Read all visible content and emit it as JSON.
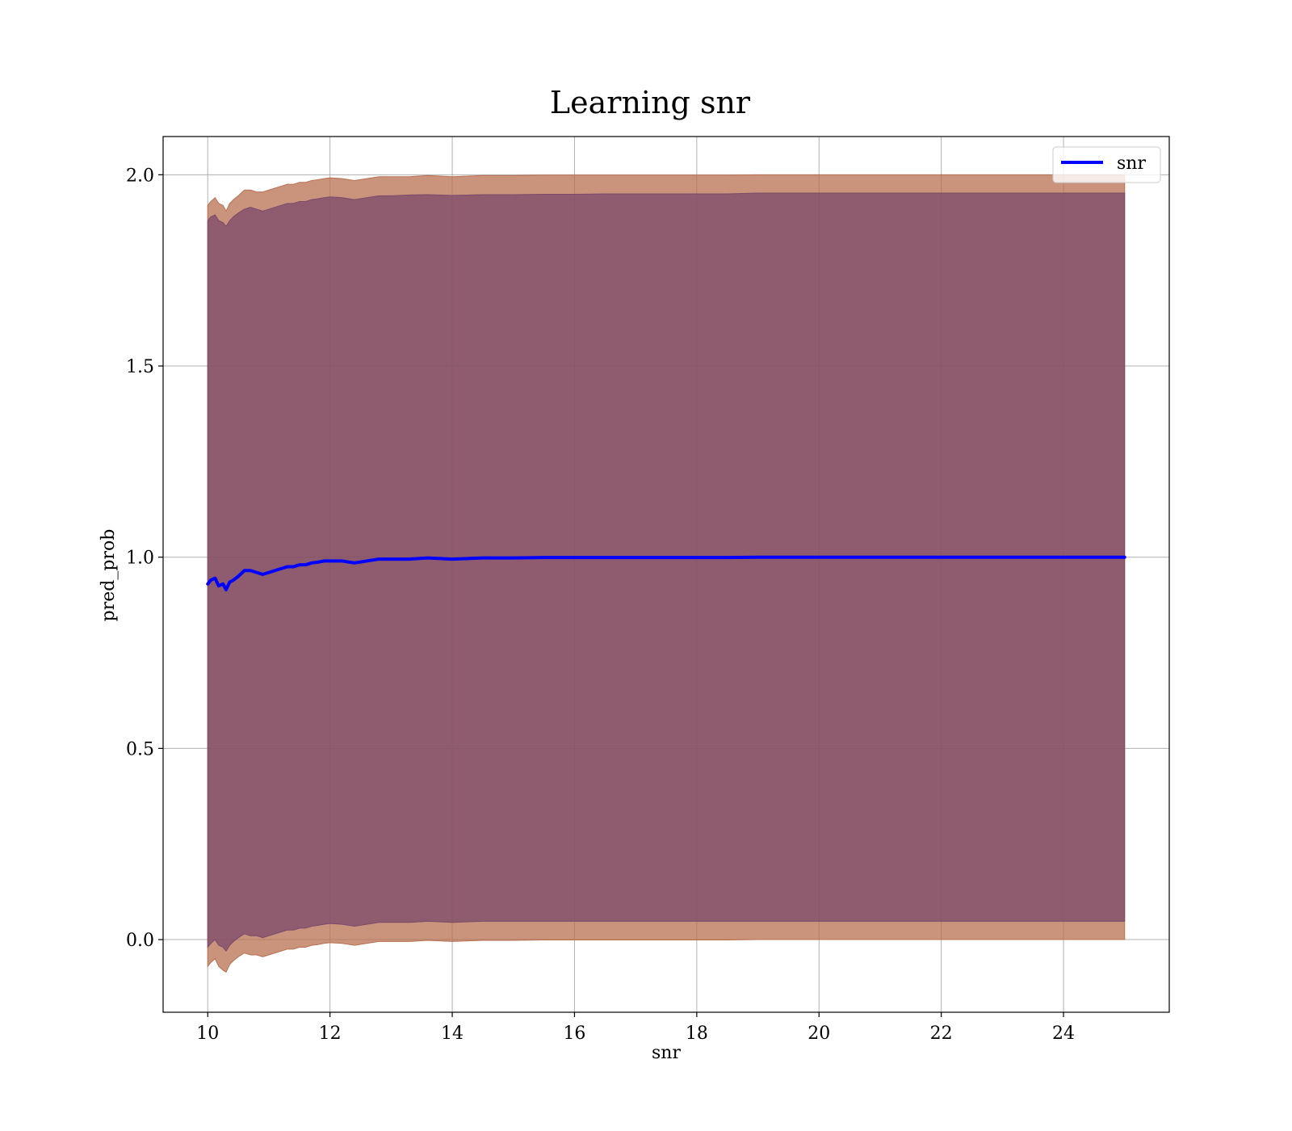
{
  "chart_data": {
    "type": "line",
    "title": "Learning snr",
    "xlabel": "snr",
    "ylabel": "pred_prob",
    "xlim": [
      9.27,
      25.73
    ],
    "ylim": [
      -0.19,
      2.1
    ],
    "xticks": [
      10,
      12,
      14,
      16,
      18,
      20,
      22,
      24
    ],
    "yticks": [
      0.0,
      0.5,
      1.0,
      1.5,
      2.0
    ],
    "xtick_labels": [
      "10",
      "12",
      "14",
      "16",
      "18",
      "20",
      "22",
      "24"
    ],
    "ytick_labels": [
      "0.0",
      "0.5",
      "1.0",
      "1.5",
      "2.0"
    ],
    "grid": true,
    "legend": {
      "placement": "top-right",
      "entries": [
        "snr"
      ]
    },
    "series": [
      {
        "name": "snr",
        "color": "#0000ff",
        "x": [
          10.0,
          10.05,
          10.12,
          10.18,
          10.25,
          10.3,
          10.36,
          10.42,
          10.5,
          10.6,
          10.7,
          10.8,
          10.9,
          11.0,
          11.1,
          11.2,
          11.3,
          11.4,
          11.5,
          11.6,
          11.7,
          11.8,
          11.9,
          12.0,
          12.2,
          12.4,
          12.6,
          12.8,
          13.0,
          13.3,
          13.6,
          14.0,
          14.5,
          15.0,
          15.5,
          16.0,
          16.5,
          17.0,
          17.5,
          18.0,
          18.5,
          19.0,
          20.0,
          21.0,
          22.0,
          23.0,
          24.0,
          25.0
        ],
        "y": [
          0.93,
          0.94,
          0.945,
          0.925,
          0.93,
          0.915,
          0.935,
          0.94,
          0.95,
          0.965,
          0.965,
          0.96,
          0.955,
          0.96,
          0.965,
          0.97,
          0.975,
          0.975,
          0.98,
          0.98,
          0.985,
          0.987,
          0.99,
          0.99,
          0.99,
          0.985,
          0.99,
          0.995,
          0.995,
          0.995,
          0.998,
          0.995,
          0.998,
          0.998,
          0.999,
          0.999,
          0.999,
          0.999,
          0.999,
          0.999,
          0.999,
          1.0,
          1.0,
          1.0,
          1.0,
          1.0,
          1.0,
          1.0
        ]
      }
    ],
    "bands": [
      {
        "color": "#b87050",
        "upper": [
          1.92,
          1.93,
          1.94,
          1.925,
          1.92,
          1.905,
          1.925,
          1.935,
          1.945,
          1.96,
          1.96,
          1.955,
          1.955,
          1.96,
          1.965,
          1.97,
          1.975,
          1.975,
          1.98,
          1.98,
          1.985,
          1.987,
          1.99,
          1.992,
          1.99,
          1.985,
          1.99,
          1.995,
          1.995,
          1.995,
          1.998,
          1.995,
          1.998,
          1.998,
          1.999,
          1.999,
          1.999,
          1.999,
          1.999,
          1.999,
          1.999,
          2.0,
          2.0,
          2.0,
          2.0,
          2.0,
          2.0,
          2.0
        ],
        "lower": [
          -0.07,
          -0.06,
          -0.05,
          -0.07,
          -0.08,
          -0.085,
          -0.065,
          -0.055,
          -0.045,
          -0.035,
          -0.04,
          -0.04,
          -0.045,
          -0.04,
          -0.035,
          -0.03,
          -0.025,
          -0.025,
          -0.02,
          -0.02,
          -0.015,
          -0.013,
          -0.01,
          -0.008,
          -0.01,
          -0.015,
          -0.01,
          -0.005,
          -0.005,
          -0.005,
          -0.002,
          -0.005,
          -0.002,
          -0.002,
          -0.001,
          -0.001,
          -0.001,
          -0.001,
          -0.001,
          -0.001,
          -0.001,
          0.0,
          0.0,
          0.0,
          0.0,
          0.0,
          0.0,
          0.0
        ]
      },
      {
        "color": "#7a4a6a",
        "upper": [
          1.88,
          1.89,
          1.895,
          1.88,
          1.875,
          1.865,
          1.88,
          1.89,
          1.9,
          1.91,
          1.915,
          1.91,
          1.905,
          1.91,
          1.915,
          1.92,
          1.925,
          1.925,
          1.93,
          1.93,
          1.935,
          1.937,
          1.94,
          1.942,
          1.94,
          1.935,
          1.94,
          1.945,
          1.945,
          1.947,
          1.948,
          1.946,
          1.948,
          1.948,
          1.949,
          1.949,
          1.95,
          1.95,
          1.95,
          1.95,
          1.95,
          1.952,
          1.952,
          1.952,
          1.952,
          1.952,
          1.952,
          1.952
        ],
        "lower": [
          -0.02,
          -0.01,
          0.0,
          -0.015,
          -0.02,
          -0.03,
          -0.015,
          -0.005,
          0.005,
          0.015,
          0.01,
          0.01,
          0.005,
          0.01,
          0.015,
          0.02,
          0.025,
          0.025,
          0.03,
          0.03,
          0.035,
          0.037,
          0.04,
          0.042,
          0.04,
          0.035,
          0.04,
          0.045,
          0.045,
          0.045,
          0.048,
          0.045,
          0.048,
          0.048,
          0.048,
          0.048,
          0.048,
          0.048,
          0.048,
          0.048,
          0.048,
          0.048,
          0.048,
          0.048,
          0.048,
          0.048,
          0.048,
          0.048
        ]
      }
    ]
  }
}
